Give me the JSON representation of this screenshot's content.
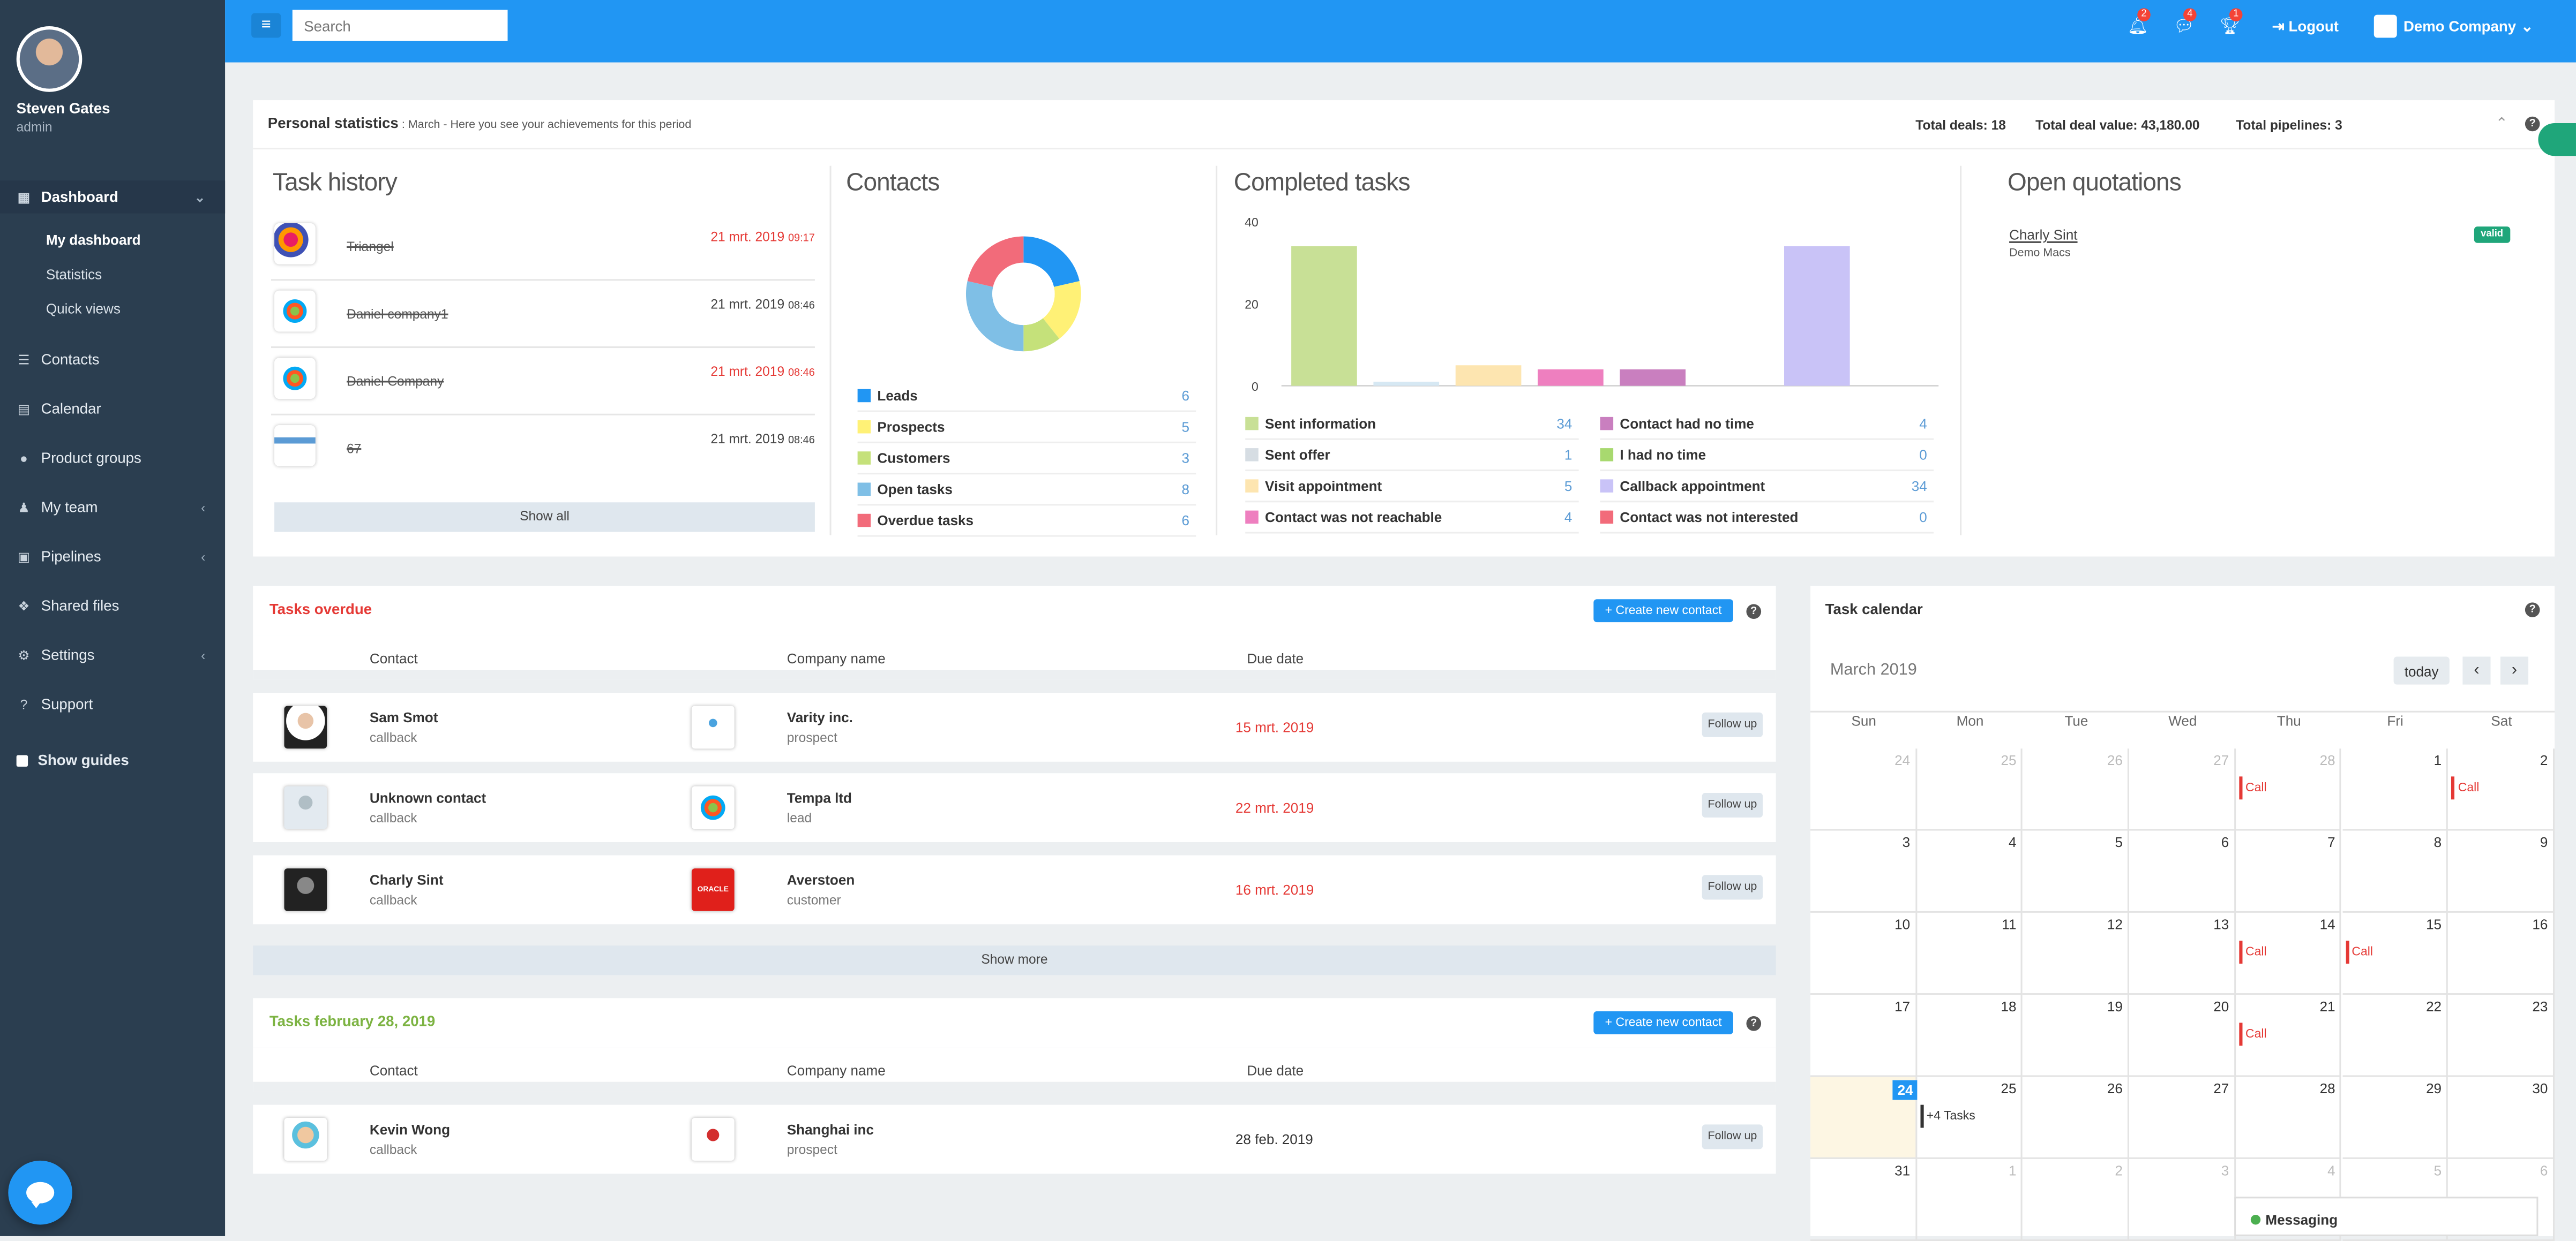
{
  "sidebar": {
    "user_name": "Steven Gates",
    "user_role": "admin",
    "dashboard": "Dashboard",
    "sub_items": [
      "My dashboard",
      "Statistics",
      "Quick views"
    ],
    "items": [
      "Contacts",
      "Calendar",
      "Product groups",
      "My team",
      "Pipelines",
      "Shared files",
      "Settings",
      "Support"
    ],
    "show_guides": "Show guides"
  },
  "topbar": {
    "search_placeholder": "Search",
    "notif_count": "2",
    "message_count": "4",
    "trophy_count": "1",
    "logout": "Logout",
    "company": "Demo Company",
    "accent": "#2196f3"
  },
  "personal_stats": {
    "title": "Personal statistics",
    "subtitle": ": March - Here you see your achievements for this period",
    "total_deals": "Total deals: 18",
    "total_value": "Total deal value: 43,180.00",
    "total_pipelines": "Total pipelines: 3"
  },
  "task_history": {
    "title": "Task history",
    "rows": [
      {
        "name": "Triangel",
        "date": "21 mrt. 2019",
        "time": "09:17",
        "overdue": true
      },
      {
        "name": "Daniel company1",
        "date": "21 mrt. 2019",
        "time": "08:46",
        "overdue": false
      },
      {
        "name": "Daniel Company",
        "date": "21 mrt. 2019",
        "time": "08:46",
        "overdue": true
      },
      {
        "name": "67",
        "date": "21 mrt. 2019",
        "time": "08:46",
        "overdue": false
      }
    ],
    "show_all": "Show all"
  },
  "contacts": {
    "title": "Contacts",
    "legend": [
      {
        "label": "Leads",
        "value": "6",
        "color": "#2196f3"
      },
      {
        "label": "Prospects",
        "value": "5",
        "color": "#fff176"
      },
      {
        "label": "Customers",
        "value": "3",
        "color": "#c5e17a"
      },
      {
        "label": "Open tasks",
        "value": "8",
        "color": "#7fbfe6"
      },
      {
        "label": "Overdue tasks",
        "value": "6",
        "color": "#f26b7a"
      }
    ]
  },
  "completed_tasks": {
    "title": "Completed tasks",
    "legend_left": [
      {
        "label": "Sent information",
        "value": "34",
        "color": "#c8e096"
      },
      {
        "label": "Sent offer",
        "value": "1",
        "color": "#d6dde3"
      },
      {
        "label": "Visit appointment",
        "value": "5",
        "color": "#fde5b0"
      },
      {
        "label": "Contact was not reachable",
        "value": "4",
        "color": "#ee7fbf"
      }
    ],
    "legend_right": [
      {
        "label": "Contact had no time",
        "value": "4",
        "color": "#c97fbf"
      },
      {
        "label": "I had no time",
        "value": "0",
        "color": "#a8d96f"
      },
      {
        "label": "Callback appointment",
        "value": "34",
        "color": "#c9c3f7"
      },
      {
        "label": "Contact was not interested",
        "value": "0",
        "color": "#f26b7a"
      }
    ]
  },
  "chart_data": {
    "type": "bar",
    "categories": [
      "Sent information",
      "Sent offer",
      "Visit appointment",
      "Contact was not reachable",
      "Contact had no time",
      "I had no time",
      "Callback appointment",
      "Contact was not interested"
    ],
    "values": [
      34,
      1,
      5,
      4,
      4,
      0,
      34,
      0
    ],
    "colors": [
      "#c8e096",
      "#d6e8f3",
      "#fde5b0",
      "#ee7fbf",
      "#c97fbf",
      "#a8d96f",
      "#c9c3f7",
      "#f26b7a"
    ],
    "yticks": [
      "0",
      "20",
      "40"
    ],
    "ylim": [
      0,
      40
    ]
  },
  "donut_data": {
    "type": "pie",
    "labels": [
      "Leads",
      "Prospects",
      "Customers",
      "Open tasks",
      "Overdue tasks"
    ],
    "values": [
      6,
      5,
      3,
      8,
      6
    ]
  },
  "quotations": {
    "title": "Open quotations",
    "name": "Charly Sint",
    "company": "Demo Macs",
    "status": "valid"
  },
  "tasks_overdue": {
    "title": "Tasks overdue",
    "create_label": "Create new contact",
    "columns": [
      "Contact",
      "Company name",
      "Due date"
    ],
    "rows": [
      {
        "contact": "Sam Smot",
        "ctype": "callback",
        "company": "Varity inc.",
        "cotype": "prospect",
        "due": "15 mrt. 2019",
        "action": "Follow up"
      },
      {
        "contact": "Unknown contact",
        "ctype": "callback",
        "company": "Tempa ltd",
        "cotype": "lead",
        "due": "22 mrt. 2019",
        "action": "Follow up"
      },
      {
        "contact": "Charly Sint",
        "ctype": "callback",
        "company": "Averstoen",
        "cotype": "customer",
        "due": "16 mrt. 2019",
        "action": "Follow up"
      }
    ],
    "show_more": "Show more",
    "oracle_text": "ORACLE"
  },
  "tasks_feb": {
    "title": "Tasks february 28, 2019",
    "create_label": "Create new contact",
    "columns": [
      "Contact",
      "Company name",
      "Due date"
    ],
    "rows": [
      {
        "contact": "Kevin Wong",
        "ctype": "callback",
        "company": "Shanghai inc",
        "cotype": "prospect",
        "due": "28 feb. 2019",
        "action": "Follow up"
      }
    ]
  },
  "calendar": {
    "title": "Task calendar",
    "month": "March 2019",
    "today": "today",
    "dow": [
      "Sun",
      "Mon",
      "Tue",
      "Wed",
      "Thu",
      "Fri",
      "Sat"
    ],
    "days": [
      "24",
      "25",
      "26",
      "27",
      "28",
      "1",
      "2",
      "3",
      "4",
      "5",
      "6",
      "7",
      "8",
      "9",
      "10",
      "11",
      "12",
      "13",
      "14",
      "15",
      "16",
      "17",
      "18",
      "19",
      "20",
      "21",
      "22",
      "23",
      "24",
      "25",
      "26",
      "27",
      "28",
      "29",
      "30",
      "31",
      "1",
      "2",
      "3",
      "4",
      "5",
      "6"
    ],
    "events": {
      "4": "Call",
      "6": "Call",
      "18": "Call",
      "19": "Call",
      "25": "Call",
      "29": "+4 Tasks"
    },
    "messaging": "Messaging"
  }
}
